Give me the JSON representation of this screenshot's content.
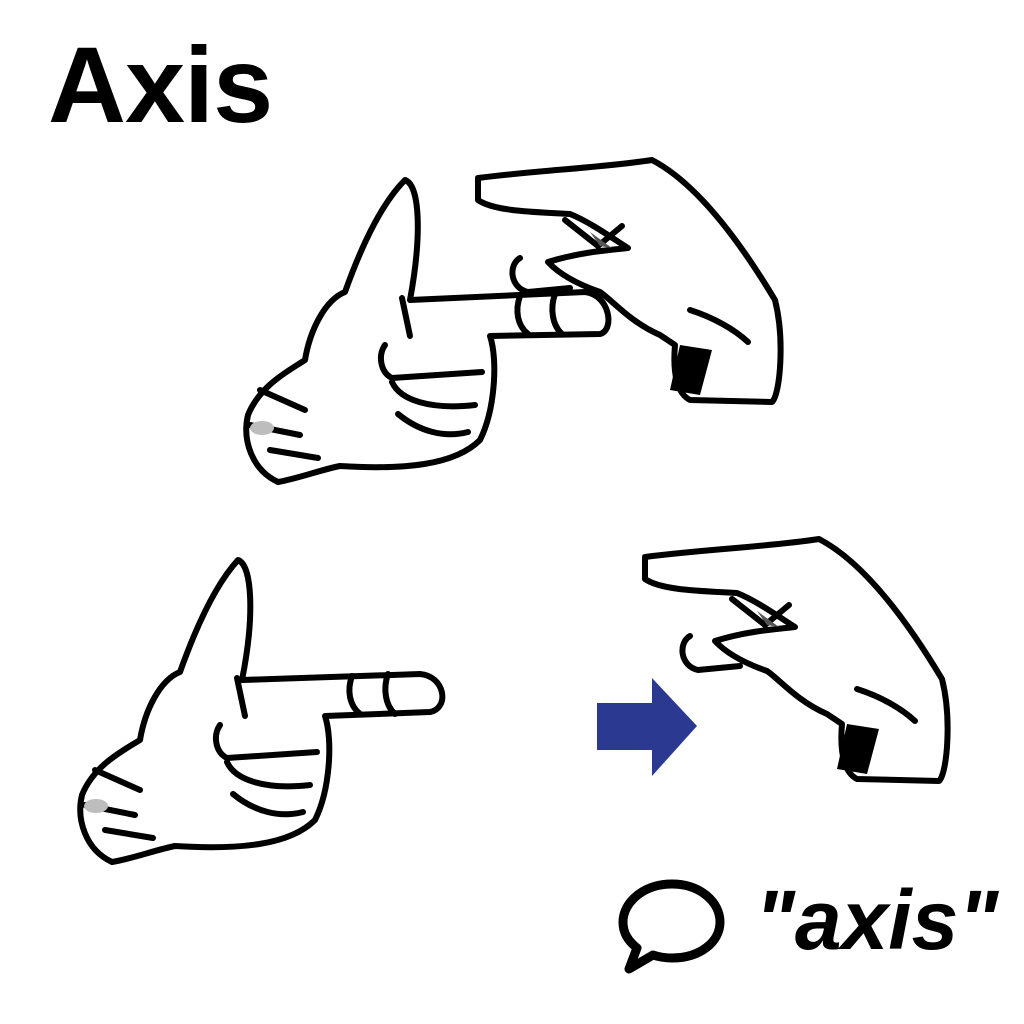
{
  "title": "Axis",
  "spoken_word": "\"axis\"",
  "icons": {
    "speech": "speech-bubble-icon",
    "arrow": "right-arrow-icon"
  },
  "colors": {
    "arrow": "#2b3990",
    "ink": "#000000",
    "background": "#ffffff",
    "nail_shade": "#bdbdbd"
  }
}
